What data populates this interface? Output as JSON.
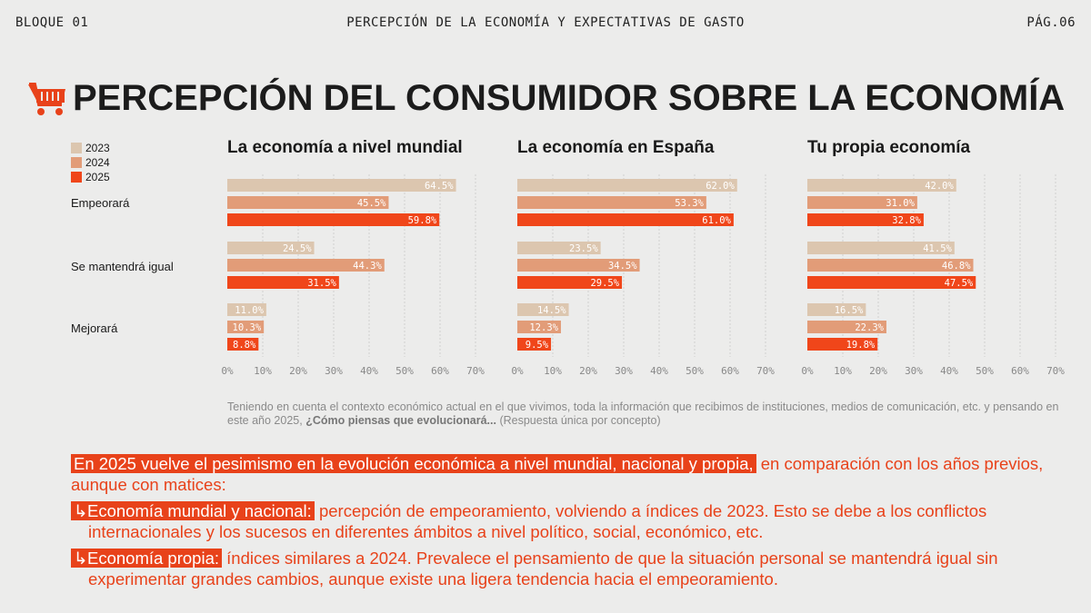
{
  "header": {
    "left": "BLOQUE 01",
    "center": "PERCEPCIÓN DE LA ECONOMÍA Y EXPECTATIVAS DE GASTO",
    "right": "PÁG.06"
  },
  "page_title": "PERCEPCIÓN DEL CONSUMIDOR SOBRE LA ECONOMÍA",
  "icons": {
    "title_icon": "shopping-cart-icon",
    "bullet_icon": "arrow-turn-right-icon"
  },
  "colors": {
    "2023": "#dcc6af",
    "2024": "#e29c78",
    "2025": "#f0461a",
    "accent": "#e8421a"
  },
  "legend": [
    "2023",
    "2024",
    "2025"
  ],
  "row_labels": [
    "Empeorará",
    "Se mantendrá igual",
    "Mejorará"
  ],
  "chart_data": [
    {
      "type": "bar",
      "orientation": "horizontal",
      "title": "La economía a nivel mundial",
      "categories": [
        "Empeorará",
        "Se mantendrá igual",
        "Mejorará"
      ],
      "series": [
        {
          "name": "2023",
          "values": [
            64.5,
            24.5,
            11.0
          ],
          "labels": [
            "64.5%",
            "24.5%",
            "11.0%"
          ]
        },
        {
          "name": "2024",
          "values": [
            45.5,
            44.3,
            10.3
          ],
          "labels": [
            "45.5%",
            "44.3%",
            "10.3%"
          ]
        },
        {
          "name": "2025",
          "values": [
            59.8,
            31.5,
            8.8
          ],
          "labels": [
            "59.8%",
            "31.5%",
            "8.8%"
          ]
        }
      ],
      "xlim": [
        0,
        70
      ],
      "ticks": [
        "0%",
        "10%",
        "20%",
        "30%",
        "40%",
        "50%",
        "60%",
        "70%"
      ],
      "grid": true
    },
    {
      "type": "bar",
      "orientation": "horizontal",
      "title": "La economía en España",
      "categories": [
        "Empeorará",
        "Se mantendrá igual",
        "Mejorará"
      ],
      "series": [
        {
          "name": "2023",
          "values": [
            62.0,
            23.5,
            14.5
          ],
          "labels": [
            "62.0%",
            "23.5%",
            "14.5%"
          ]
        },
        {
          "name": "2024",
          "values": [
            53.3,
            34.5,
            12.3
          ],
          "labels": [
            "53.3%",
            "34.5%",
            "12.3%"
          ]
        },
        {
          "name": "2025",
          "values": [
            61.0,
            29.5,
            9.5
          ],
          "labels": [
            "61.0%",
            "29.5%",
            "9.5%"
          ]
        }
      ],
      "xlim": [
        0,
        70
      ],
      "ticks": [
        "0%",
        "10%",
        "20%",
        "30%",
        "40%",
        "50%",
        "60%",
        "70%"
      ],
      "grid": true
    },
    {
      "type": "bar",
      "orientation": "horizontal",
      "title": "Tu propia economía",
      "categories": [
        "Empeorará",
        "Se mantendrá igual",
        "Mejorará"
      ],
      "series": [
        {
          "name": "2023",
          "values": [
            42.0,
            41.5,
            16.5
          ],
          "labels": [
            "42.0%",
            "41.5%",
            "16.5%"
          ]
        },
        {
          "name": "2024",
          "values": [
            31.0,
            46.8,
            22.3
          ],
          "labels": [
            "31.0%",
            "46.8%",
            "22.3%"
          ]
        },
        {
          "name": "2025",
          "values": [
            32.8,
            47.5,
            19.8
          ],
          "labels": [
            "32.8%",
            "47.5%",
            "19.8%"
          ]
        }
      ],
      "xlim": [
        0,
        70
      ],
      "ticks": [
        "0%",
        "10%",
        "20%",
        "30%",
        "40%",
        "50%",
        "60%",
        "70%"
      ],
      "grid": true
    }
  ],
  "question": {
    "text": "Teniendo en cuenta el contexto económico actual en el que vivimos, toda la información que recibimos de instituciones, medios de comunicación, etc. y pensando en este año 2025, ",
    "bold": "¿Cómo piensas que evolucionará...",
    "suffix": " (Respuesta única por concepto)"
  },
  "summary": {
    "highlight": "En 2025 vuelve el pesimismo en la evolución económica a nivel mundial, nacional y propia,",
    "rest": " en comparación con los años previos, aunque con matices:"
  },
  "bullets": [
    {
      "arrow": "↳",
      "label": "Economía mundial y nacional:",
      "line1": " percepción de empeoramiento, volviendo a índices de 2023. Esto se debe a los conflictos",
      "line2": "internacionales y los sucesos en diferentes ámbitos a nivel político, social, económico, etc."
    },
    {
      "arrow": "↳",
      "label": "Economía propia:",
      "line1": " índices similares a 2024. Prevalece el pensamiento de que la situación personal se mantendrá igual sin",
      "line2": "experimentar grandes cambios, aunque existe una ligera tendencia hacia el empeoramiento."
    }
  ]
}
